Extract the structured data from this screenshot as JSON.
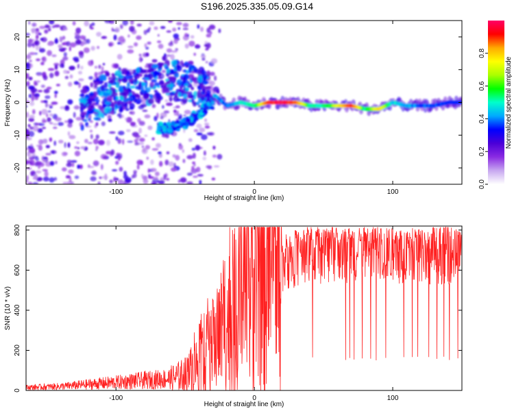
{
  "title": "S196.2025.335.05.09.G14",
  "chart_data": [
    {
      "type": "heatmap",
      "title": "S196.2025.335.05.09.G14",
      "xlabel": "Height of straight line (km)",
      "ylabel": "Frequency (Hz)",
      "xlim": [
        -165,
        150
      ],
      "ylim": [
        -25,
        25
      ],
      "xticks": [
        -100,
        0,
        100
      ],
      "yticks": [
        -20,
        -10,
        0,
        10,
        20
      ],
      "colorbar": {
        "label": "Normalized spectral amplitude",
        "range": [
          0,
          1
        ],
        "ticks": [
          0,
          0.2,
          0.4,
          0.6,
          0.8
        ],
        "tick_labels": [
          "0.0",
          "0.2",
          "0.4",
          "0.6",
          "0.8"
        ],
        "colors": [
          "#ffffff",
          "#c8a8f0",
          "#8a2be2",
          "#4b00d8",
          "#0000ff",
          "#00aaff",
          "#00ffcc",
          "#00ff00",
          "#aaff00",
          "#ffff00",
          "#ffaa00",
          "#ff0000",
          "#ff0066"
        ]
      },
      "ridge": {
        "x": [
          -28,
          -20,
          -10,
          0,
          10,
          20,
          30,
          40,
          50,
          60,
          70,
          80,
          90,
          100,
          110,
          120,
          130,
          140,
          148
        ],
        "y": [
          2,
          -1,
          0,
          -1,
          0,
          0,
          0,
          -1,
          -1,
          -1,
          -1,
          -2,
          -2,
          0,
          -1,
          -1,
          -1,
          0,
          0
        ],
        "amplitude": [
          0.5,
          0.45,
          0.55,
          0.6,
          0.95,
          1.0,
          0.9,
          0.6,
          0.6,
          0.75,
          0.95,
          0.6,
          0.8,
          0.55,
          0.5,
          0.45,
          0.45,
          0.4,
          0.35
        ]
      },
      "upper_arc": {
        "x": [
          -125,
          -110,
          -100,
          -90,
          -80,
          -70,
          -60,
          -50,
          -40,
          -33
        ],
        "y": [
          -2,
          2,
          3,
          4,
          5,
          6,
          7,
          6,
          5,
          3
        ]
      },
      "lower_arc": {
        "x": [
          -70,
          -62,
          -55,
          -48,
          -42,
          -36,
          -30
        ],
        "y": [
          -8,
          -8,
          -7,
          -6,
          -4,
          -2,
          0
        ]
      }
    },
    {
      "type": "line",
      "xlabel": "Height of straight line (km)",
      "ylabel": "SNR (10 * v/v)",
      "xlim": [
        -165,
        150
      ],
      "ylim": [
        0,
        820
      ],
      "xticks": [
        -100,
        0,
        100
      ],
      "yticks": [
        0,
        200,
        400,
        600,
        800
      ],
      "color": "#ff2020",
      "envelope": {
        "x": [
          -165,
          -140,
          -120,
          -100,
          -80,
          -60,
          -50,
          -40,
          -30,
          -20,
          -10,
          0,
          10,
          20,
          30,
          40,
          150
        ],
        "y": [
          15,
          20,
          30,
          40,
          50,
          60,
          80,
          140,
          220,
          330,
          430,
          500,
          580,
          630,
          660,
          680,
          680
        ]
      },
      "dropouts": [
        42,
        66,
        69,
        72,
        78,
        84,
        88,
        95,
        108,
        114,
        118,
        126,
        132,
        137,
        141,
        147
      ]
    }
  ]
}
